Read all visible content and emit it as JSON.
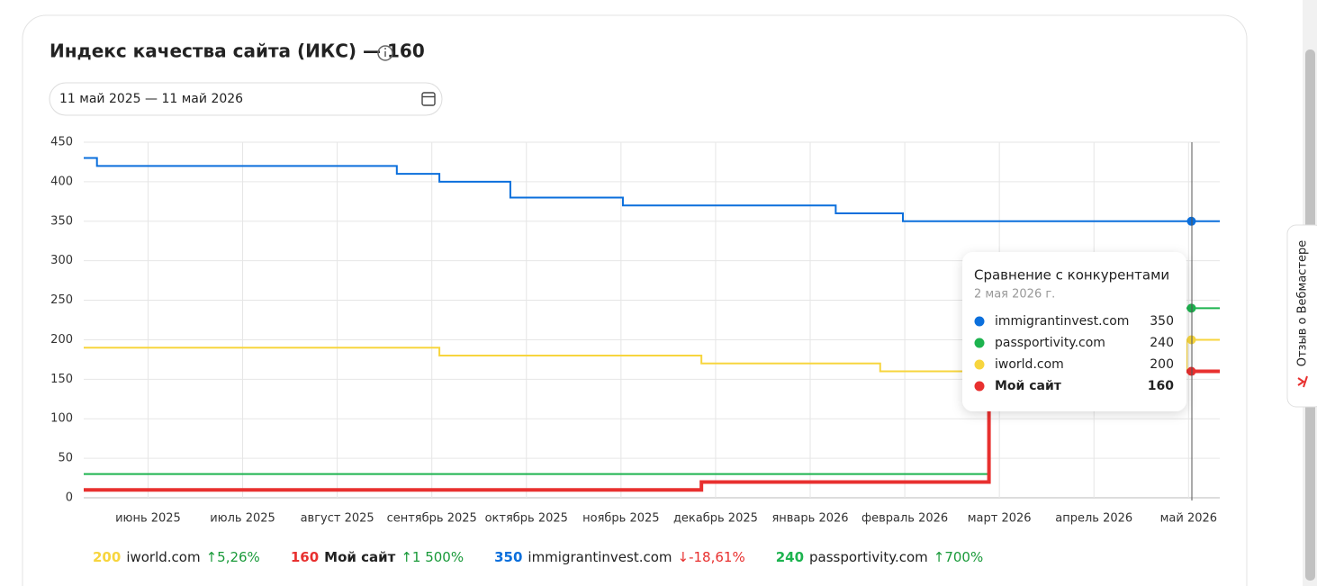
{
  "header": {
    "title": "Индекс качества сайта (ИКС) — 160",
    "date_range": "11 май 2025 — 11 май 2026"
  },
  "chart_data": {
    "type": "line",
    "step": true,
    "grid": true,
    "xlim": [
      -0.68,
      11.33
    ],
    "xticks": [
      {
        "value": 0,
        "label": "июнь 2025"
      },
      {
        "value": 1,
        "label": "июль 2025"
      },
      {
        "value": 2,
        "label": "август 2025"
      },
      {
        "value": 3,
        "label": "сентябрь 2025"
      },
      {
        "value": 4,
        "label": "октябрь 2025"
      },
      {
        "value": 5,
        "label": "ноябрь 2025"
      },
      {
        "value": 6,
        "label": "декабрь 2025"
      },
      {
        "value": 7,
        "label": "январь 2026"
      },
      {
        "value": 8,
        "label": "февраль 2026"
      },
      {
        "value": 9,
        "label": "март 2026"
      },
      {
        "value": 10,
        "label": "апрель 2026"
      },
      {
        "value": 11,
        "label": "май 2026"
      }
    ],
    "ylim": [
      0,
      450
    ],
    "yticks": [
      0,
      50,
      100,
      150,
      200,
      250,
      300,
      350,
      400,
      450
    ],
    "hover_x": 11.03,
    "series": [
      {
        "name": "immigrantinvest.com",
        "color": "#0b6fdc",
        "line_width": 2,
        "current": 350,
        "change": "↓-18,61%",
        "change_color": "#e8302f",
        "x": [
          -0.68,
          -0.54,
          2.63,
          3.08,
          3.83,
          5.02,
          7.27,
          7.98,
          11.33
        ],
        "values": [
          430,
          420,
          410,
          400,
          380,
          370,
          360,
          350,
          350
        ]
      },
      {
        "name": "passportivity.com",
        "color": "#1db34f",
        "line_width": 2,
        "current": 240,
        "change": "↑700%",
        "change_color": "#1a9a3a",
        "x": [
          -0.68,
          8.89,
          11.33
        ],
        "values": [
          30,
          240,
          240
        ]
      },
      {
        "name": "iworld.com",
        "color": "#f7d53e",
        "line_width": 2,
        "current": 200,
        "change": "↑5,26%",
        "change_color": "#1a9a3a",
        "x": [
          -0.68,
          3.08,
          5.85,
          7.74,
          10.98,
          11.33
        ],
        "values": [
          190,
          180,
          170,
          160,
          200,
          200
        ]
      },
      {
        "name": "Мой сайт",
        "color": "#e8302f",
        "line_width": 4,
        "current": 160,
        "change": "↑1 500%",
        "change_color": "#1a9a3a",
        "x": [
          -0.68,
          5.85,
          8.89,
          11.33
        ],
        "values": [
          10,
          20,
          160,
          160
        ]
      }
    ]
  },
  "tooltip": {
    "title": "Сравнение с конкурентами",
    "date": "2 мая 2026 г."
  },
  "side_tab": "Отзыв о Вебмастере"
}
